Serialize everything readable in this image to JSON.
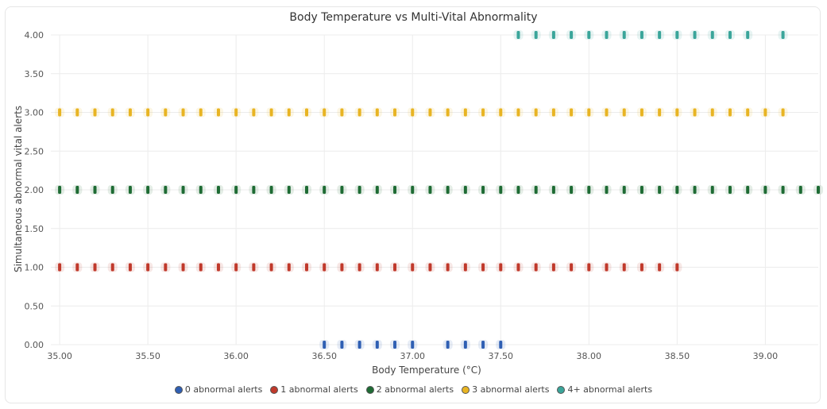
{
  "chart_data": {
    "type": "scatter",
    "title": "Body Temperature vs Multi-Vital Abnormality",
    "xlabel": "Body Temperature (°C)",
    "ylabel": "Simultaneous abnormal vital alerts",
    "xlim": [
      34.95,
      39.3
    ],
    "ylim": [
      0,
      4
    ],
    "xticks": [
      "35.00",
      "35.50",
      "36.00",
      "36.50",
      "37.00",
      "37.50",
      "38.00",
      "38.50",
      "39.00"
    ],
    "yticks": [
      "0.00",
      "0.50",
      "1.00",
      "1.50",
      "2.00",
      "2.50",
      "3.00",
      "3.50",
      "4.00"
    ],
    "grid": true,
    "legend_position": "bottom",
    "series": [
      {
        "name": "0 abnormal alerts",
        "color": "#2f5fb3",
        "y": 0,
        "x": [
          36.5,
          36.6,
          36.7,
          36.8,
          36.9,
          37.0,
          37.2,
          37.3,
          37.4,
          37.5
        ]
      },
      {
        "name": "1 abnormal alerts",
        "color": "#c0392b",
        "y": 1,
        "x": [
          35.0,
          35.1,
          35.2,
          35.3,
          35.4,
          35.5,
          35.6,
          35.7,
          35.8,
          35.9,
          36.0,
          36.1,
          36.2,
          36.3,
          36.4,
          36.5,
          36.6,
          36.7,
          36.8,
          36.9,
          37.0,
          37.1,
          37.2,
          37.3,
          37.4,
          37.5,
          37.6,
          37.7,
          37.8,
          37.9,
          38.0,
          38.1,
          38.2,
          38.3,
          38.4,
          38.5
        ]
      },
      {
        "name": "2 abnormal alerts",
        "color": "#1e6b34",
        "y": 2,
        "x": [
          35.0,
          35.1,
          35.2,
          35.3,
          35.4,
          35.5,
          35.6,
          35.7,
          35.8,
          35.9,
          36.0,
          36.1,
          36.2,
          36.3,
          36.4,
          36.5,
          36.6,
          36.7,
          36.8,
          36.9,
          37.0,
          37.1,
          37.2,
          37.3,
          37.4,
          37.5,
          37.6,
          37.7,
          37.8,
          37.9,
          38.0,
          38.1,
          38.2,
          38.3,
          38.4,
          38.5,
          38.6,
          38.7,
          38.8,
          38.9,
          39.0,
          39.1,
          39.2,
          39.3
        ]
      },
      {
        "name": "3 abnormal alerts",
        "color": "#e8b423",
        "y": 3,
        "x": [
          35.0,
          35.1,
          35.2,
          35.3,
          35.4,
          35.5,
          35.6,
          35.7,
          35.8,
          35.9,
          36.0,
          36.1,
          36.2,
          36.3,
          36.4,
          36.5,
          36.6,
          36.7,
          36.8,
          36.9,
          37.0,
          37.1,
          37.2,
          37.3,
          37.4,
          37.5,
          37.6,
          37.7,
          37.8,
          37.9,
          38.0,
          38.1,
          38.2,
          38.3,
          38.4,
          38.5,
          38.6,
          38.7,
          38.8,
          38.9,
          39.0,
          39.1
        ]
      },
      {
        "name": "4+ abnormal alerts",
        "color": "#3aa59a",
        "y": 4,
        "x": [
          37.6,
          37.7,
          37.8,
          37.9,
          38.0,
          38.1,
          38.2,
          38.3,
          38.4,
          38.5,
          38.6,
          38.7,
          38.8,
          38.9,
          39.1
        ]
      }
    ]
  }
}
